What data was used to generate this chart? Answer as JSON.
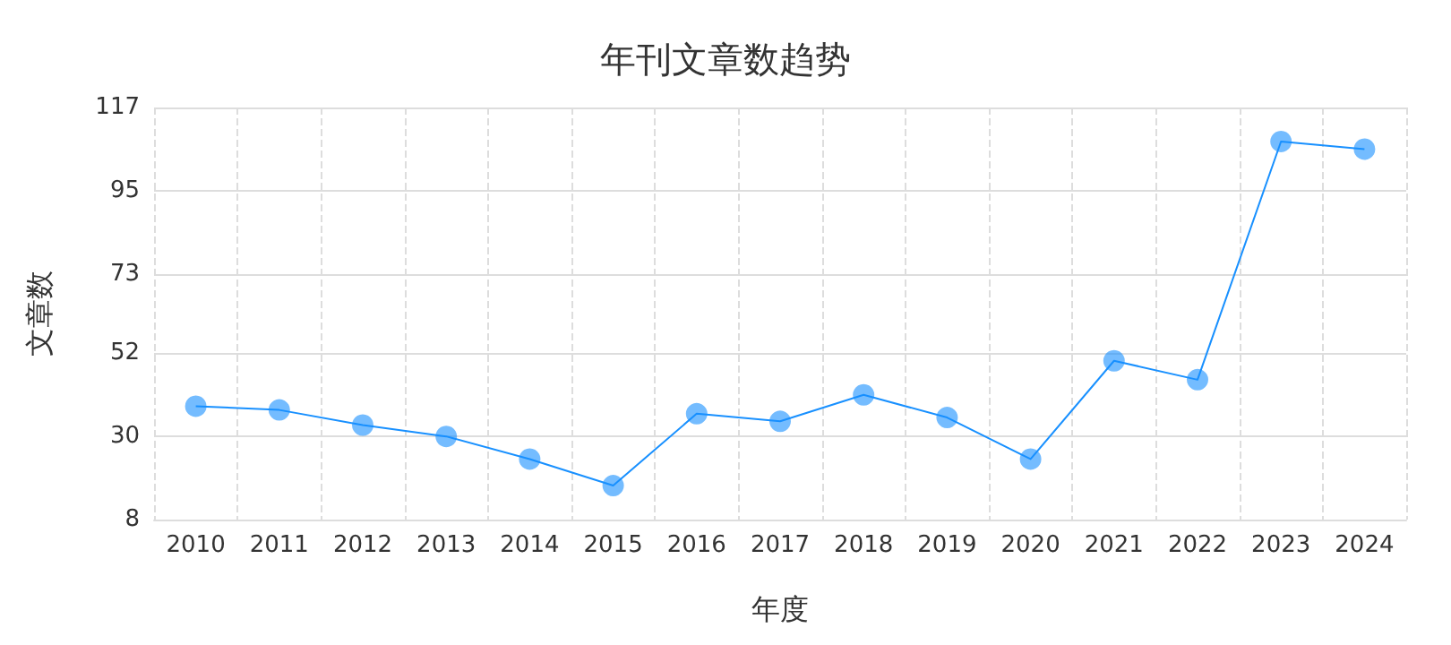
{
  "chart_data": {
    "type": "line",
    "title": "年刊文章数趋势",
    "xlabel": "年度",
    "ylabel": "文章数",
    "categories": [
      "2010",
      "2011",
      "2012",
      "2013",
      "2014",
      "2015",
      "2016",
      "2017",
      "2018",
      "2019",
      "2020",
      "2021",
      "2022",
      "2023",
      "2024"
    ],
    "series": [
      {
        "color": "#1890ff",
        "values": [
          38,
          37,
          33,
          30,
          24,
          17,
          36,
          34,
          41,
          35,
          24,
          50,
          45,
          108,
          106
        ]
      }
    ],
    "ylim": [
      8,
      117
    ],
    "yticks": [
      8,
      30,
      52,
      73,
      95,
      117
    ],
    "grid": true,
    "marker": "circle",
    "line_style": "solid"
  }
}
